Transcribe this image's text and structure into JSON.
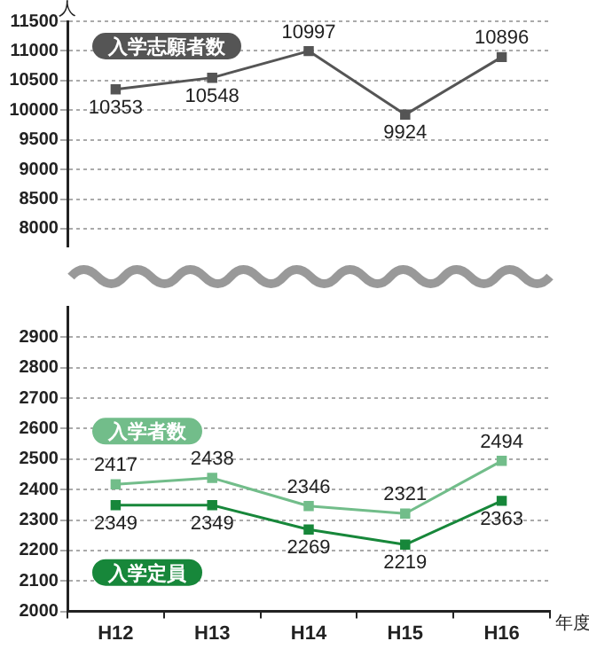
{
  "chart_data": [
    {
      "type": "line",
      "ylabel": "人",
      "ylim": [
        7700,
        11500
      ],
      "yticks": [
        8000,
        8500,
        9000,
        9500,
        10000,
        10500,
        11000,
        11500
      ],
      "tick_labels": "y",
      "grid": "y",
      "marker": "square",
      "data_labels": true,
      "legend": false,
      "series": [
        {
          "name": "入学志願者数",
          "color": "#555555",
          "values": [
            10353,
            10548,
            10997,
            9924,
            10896
          ]
        }
      ]
    },
    {
      "type": "line",
      "xlabel": "年度",
      "categories": [
        "H12",
        "H13",
        "H14",
        "H15",
        "H16"
      ],
      "ylim": [
        2000,
        3000
      ],
      "yticks": [
        2000,
        2100,
        2200,
        2300,
        2400,
        2500,
        2600,
        2700,
        2800,
        2900
      ],
      "grid": "y",
      "marker": "square",
      "data_labels": true,
      "legend": false,
      "series": [
        {
          "name": "入学者数",
          "color": "#72bd8a",
          "values": [
            2417,
            2438,
            2346,
            2321,
            2494
          ]
        },
        {
          "name": "入学定員",
          "color": "#17873a",
          "values": [
            2349,
            2349,
            2269,
            2219,
            2363
          ]
        }
      ]
    }
  ]
}
